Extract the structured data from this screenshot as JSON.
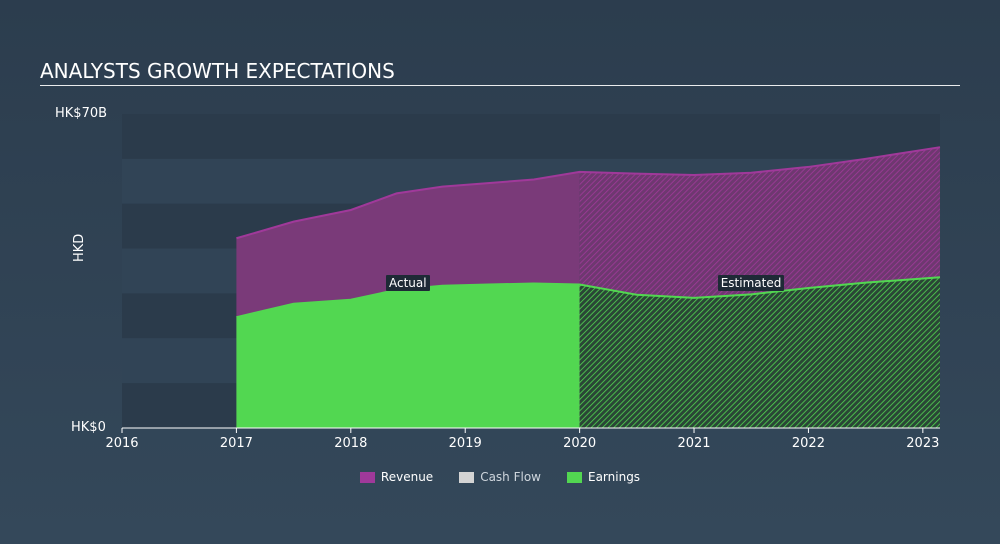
{
  "title": "ANALYSTS GROWTH EXPECTATIONS",
  "chart_data": {
    "type": "area",
    "ylabel": "HKD",
    "y_tick_labels": {
      "max": "HK$70B",
      "min": "HK$0"
    },
    "ylim": [
      0,
      70
    ],
    "x_ticks": [
      2016,
      2017,
      2018,
      2019,
      2020,
      2021,
      2022,
      2023
    ],
    "xlim": [
      2016,
      2023.15
    ],
    "actual_label": "Actual",
    "estimated_label": "Estimated",
    "forecast_start": 2020,
    "series": [
      {
        "name": "Revenue",
        "color": "#a0399a",
        "points": [
          [
            2017,
            42.3
          ],
          [
            2017.5,
            46.0
          ],
          [
            2018,
            48.6
          ],
          [
            2018.4,
            52.3
          ],
          [
            2018.8,
            53.8
          ],
          [
            2019.2,
            54.6
          ],
          [
            2019.6,
            55.4
          ],
          [
            2020,
            57.1
          ],
          [
            2020.5,
            56.7
          ],
          [
            2021,
            56.4
          ],
          [
            2021.5,
            56.9
          ],
          [
            2022,
            58.2
          ],
          [
            2022.5,
            60.0
          ],
          [
            2023.15,
            62.6
          ]
        ]
      },
      {
        "name": "Cash Flow",
        "color": "#d4d4d4",
        "points": []
      },
      {
        "name": "Earnings",
        "color": "#52d751",
        "points": [
          [
            2017,
            24.7
          ],
          [
            2017.5,
            27.7
          ],
          [
            2018,
            28.6
          ],
          [
            2018.4,
            30.8
          ],
          [
            2018.8,
            31.7
          ],
          [
            2019.2,
            32.0
          ],
          [
            2019.6,
            32.2
          ],
          [
            2020,
            32.0
          ],
          [
            2020.5,
            29.7
          ],
          [
            2021,
            29.0
          ],
          [
            2021.5,
            29.8
          ],
          [
            2022,
            31.2
          ],
          [
            2022.5,
            32.4
          ],
          [
            2023.15,
            33.6
          ]
        ]
      }
    ]
  }
}
